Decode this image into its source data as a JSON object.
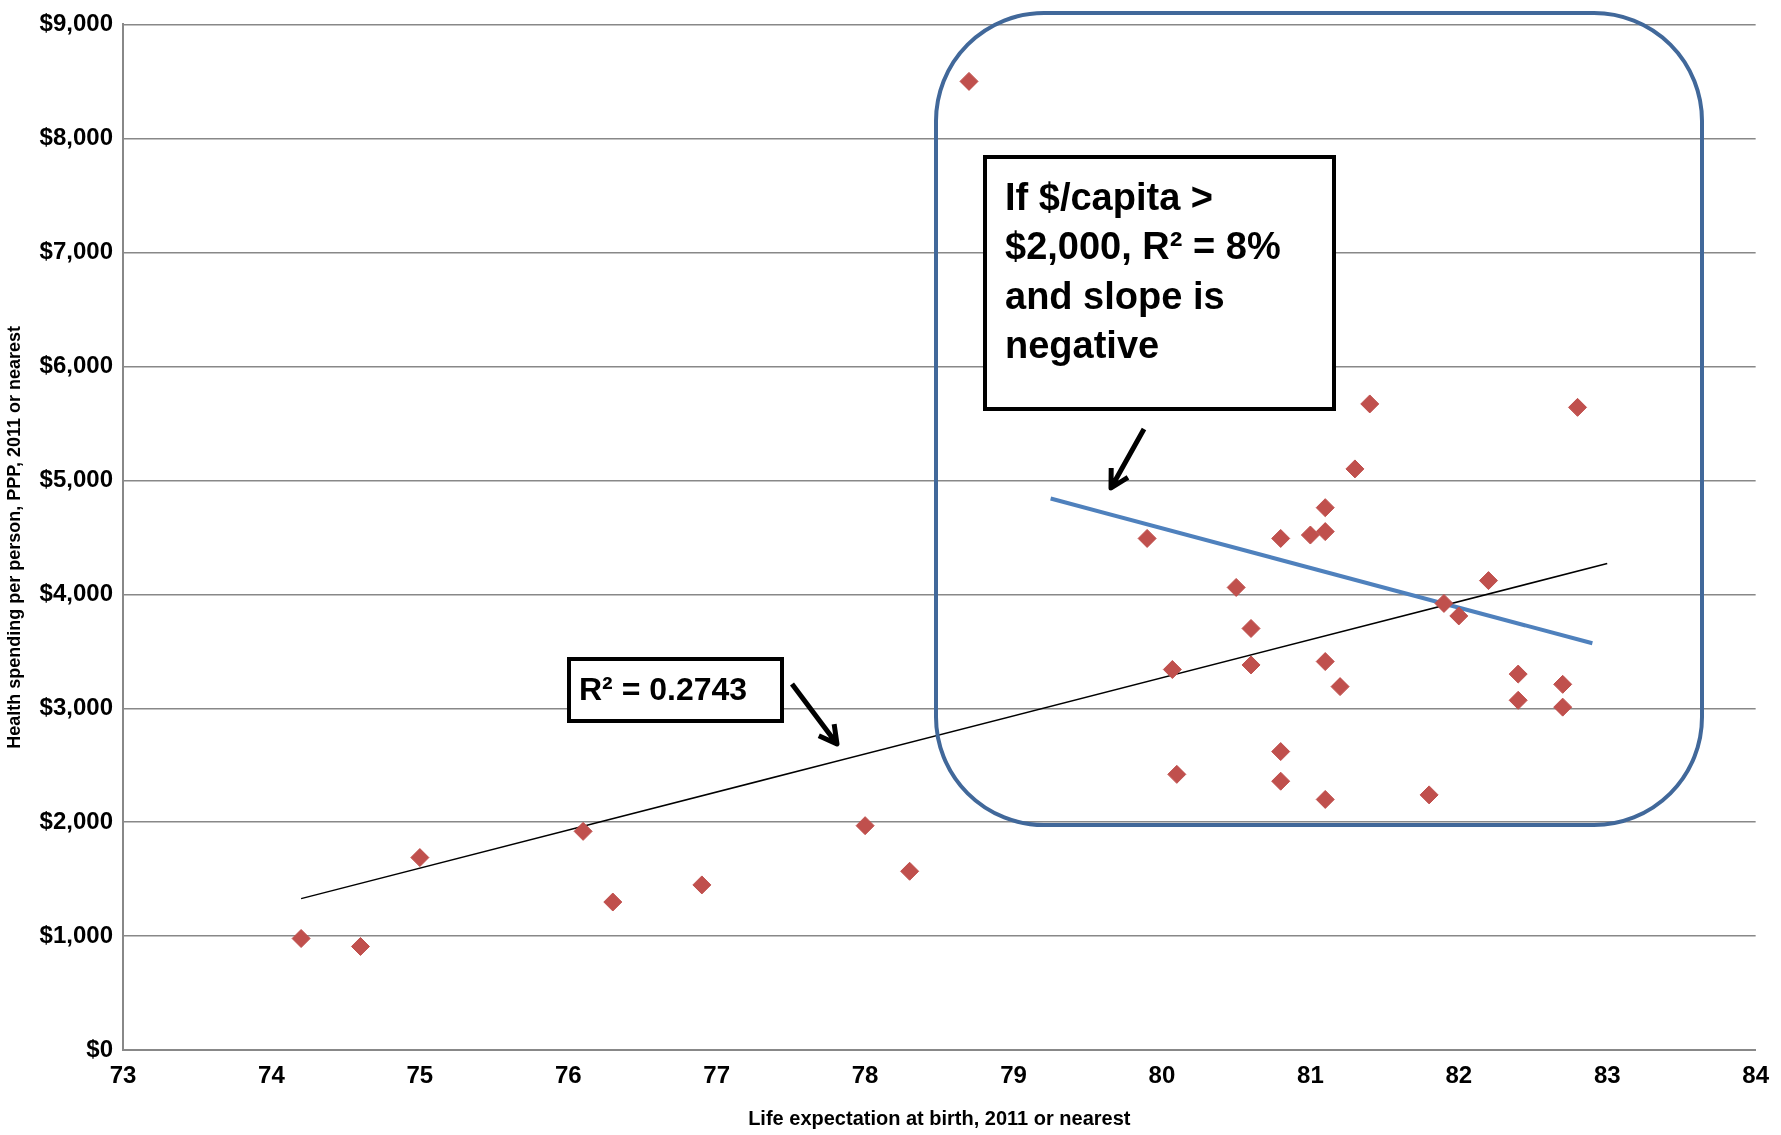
{
  "chart_data": {
    "type": "scatter",
    "xlabel": "Life expectation at birth, 2011 or nearest",
    "ylabel": "Health spending per person, PPP, 2011 or nearest",
    "series": [
      {
        "color": "#c0504d",
        "marker": "diamond",
        "x": [
          74.2,
          74.6,
          75.0,
          76.1,
          76.3,
          76.9,
          78.0,
          78.3,
          78.7,
          79.9,
          80.07,
          80.1,
          80.5,
          80.6,
          80.6,
          80.8,
          80.8,
          80.8,
          81.0,
          81.1,
          81.1,
          81.1,
          81.1,
          81.2,
          81.3,
          81.4,
          81.8,
          81.9,
          82.0,
          82.2,
          82.4,
          82.4,
          82.7,
          82.7,
          82.8
        ],
        "values": [
          980,
          910,
          1690,
          1920,
          1300,
          1450,
          1970,
          1570,
          8500,
          4490,
          3340,
          2420,
          4060,
          3700,
          3380,
          4490,
          2620,
          2360,
          4520,
          4550,
          4760,
          3410,
          2200,
          3190,
          5100,
          5670,
          2240,
          3920,
          3810,
          4120,
          3300,
          3070,
          3210,
          3010,
          5640
        ]
      },
      {
        "type": "line",
        "color": "#000000",
        "x": [
          74.2,
          83.0
        ],
        "values": [
          1330,
          4270
        ]
      },
      {
        "type": "line",
        "color": "#4f81bd",
        "x": [
          79.25,
          82.9
        ],
        "values": [
          4840,
          3570
        ]
      }
    ],
    "annotations": [
      "If $/capita > $2,000, R² = 8% and slope is negative",
      "R² = 0.2743"
    ],
    "xlim": [
      73,
      84
    ],
    "xticks": [
      73,
      74,
      75,
      76,
      77,
      78,
      79,
      80,
      81,
      82,
      83,
      84
    ],
    "ylim": [
      0,
      9000
    ],
    "yticks": [
      {
        "value": 0,
        "label": "$0"
      },
      {
        "value": 1000,
        "label": "$1,000"
      },
      {
        "value": 2000,
        "label": "$2,000"
      },
      {
        "value": 3000,
        "label": "$3,000"
      },
      {
        "value": 4000,
        "label": "$4,000"
      },
      {
        "value": 5000,
        "label": "$5,000"
      },
      {
        "value": 6000,
        "label": "$6,000"
      },
      {
        "value": 7000,
        "label": "$7,000"
      },
      {
        "value": 8000,
        "label": "$8,000"
      },
      {
        "value": 9000,
        "label": "$9,000"
      }
    ],
    "grid": "y"
  }
}
